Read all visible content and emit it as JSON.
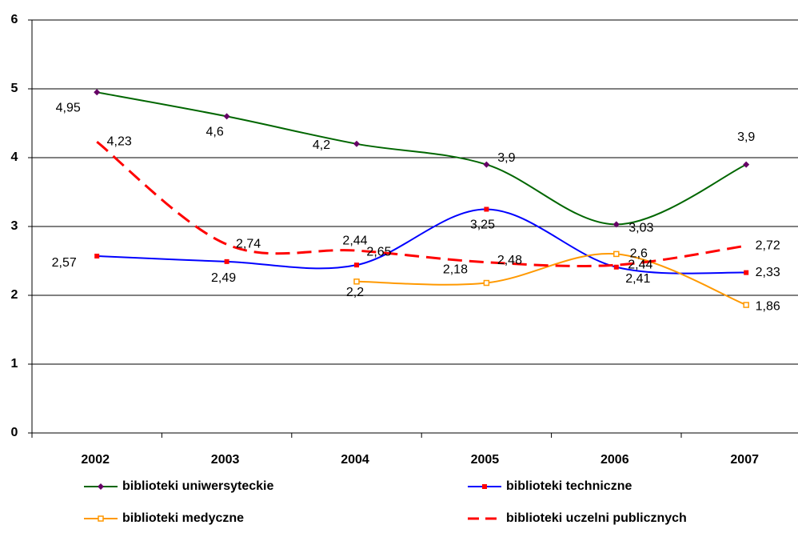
{
  "chart_data": {
    "type": "line",
    "categories": [
      "2002",
      "2003",
      "2004",
      "2005",
      "2006",
      "2007"
    ],
    "ylim": [
      0,
      6
    ],
    "yticks": [
      0,
      1,
      2,
      3,
      4,
      5,
      6
    ],
    "grid": true,
    "smooth": true,
    "legend": "bottom",
    "series": [
      {
        "name": "biblioteki uniwersyteckie",
        "color": "#006600",
        "marker": "diamond",
        "marker_color": "#660066",
        "dashed": false,
        "values": [
          4.95,
          4.6,
          4.2,
          3.9,
          3.03,
          3.9
        ],
        "value_labels": [
          "4,95",
          "4,6",
          "4,2",
          "3,9",
          "3,03",
          "3,9"
        ]
      },
      {
        "name": "biblioteki techniczne",
        "color": "#0000ff",
        "marker": "square",
        "marker_color": "#ff0000",
        "dashed": false,
        "values": [
          2.57,
          2.49,
          2.44,
          3.25,
          2.41,
          2.33
        ],
        "value_labels": [
          "2,57",
          "2,49",
          "2,44",
          "3,25",
          "2,41",
          "2,33"
        ]
      },
      {
        "name": "biblioteki medyczne",
        "color": "#ff9900",
        "marker": "hollow-square",
        "marker_color": "#ff9900",
        "dashed": false,
        "values": [
          null,
          null,
          2.2,
          2.18,
          2.6,
          1.86
        ],
        "value_labels": [
          null,
          null,
          "2,2",
          "2,18",
          "2,6",
          "1,86"
        ]
      },
      {
        "name": "biblioteki uczelni publicznych",
        "color": "#ff0000",
        "marker": "none",
        "marker_color": "#ff0000",
        "dashed": true,
        "values": [
          4.23,
          2.74,
          2.65,
          2.48,
          2.44,
          2.72
        ],
        "value_labels": [
          "4,23",
          "2,74",
          "2,65",
          "2,48",
          "2,44",
          "2,72"
        ]
      }
    ]
  }
}
